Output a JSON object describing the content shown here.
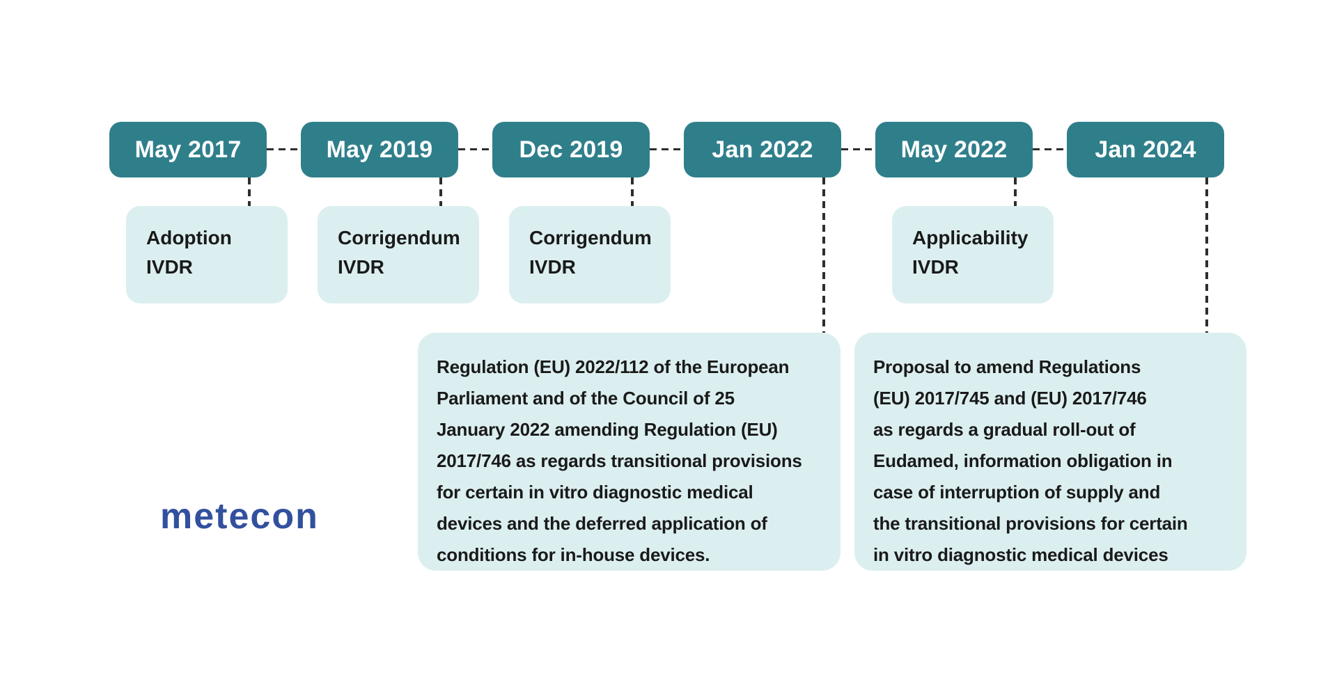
{
  "colors": {
    "pill_fill": "#2f7f8b",
    "pill_text": "#ffffff",
    "card_fill": "#dceff0",
    "card_text": "#1a1a1a",
    "connector": "#2e2e2e",
    "logo_blue": "#32509e",
    "background": "#ffffff"
  },
  "logo": {
    "text": "metecon"
  },
  "timeline": {
    "milestones": [
      {
        "date": "May 2017",
        "card": "Adoption\nIVDR"
      },
      {
        "date": "May 2019",
        "card": "Corrigendum\nIVDR"
      },
      {
        "date": "Dec 2019",
        "card": "Corrigendum\nIVDR"
      },
      {
        "date": "Jan 2022",
        "card": "Regulation (EU) 2022/112 of the European\nParliament and of the Council of 25\nJanuary 2022 amending Regulation (EU)\n2017/746 as regards transitional provisions\nfor certain in vitro diagnostic medical\ndevices and the deferred application of\nconditions for in-house devices."
      },
      {
        "date": "May 2022",
        "card": "Applicability\nIVDR"
      },
      {
        "date": "Jan 2024",
        "card": "Proposal to amend Regulations\n(EU) 2017/745 and (EU) 2017/746\nas regards a gradual roll-out of\nEudamed, information obligation in\ncase of interruption of supply and\nthe transitional provisions for certain\nin vitro diagnostic medical devices"
      }
    ]
  }
}
